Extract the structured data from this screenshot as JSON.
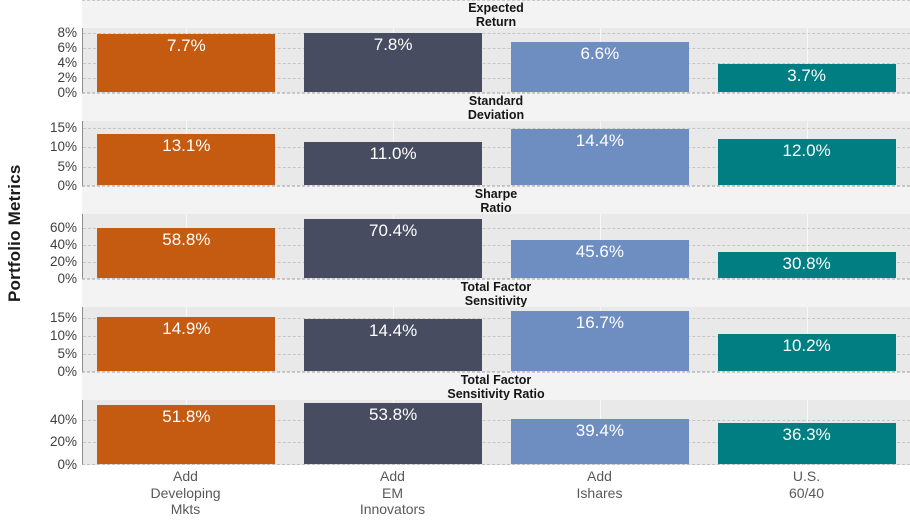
{
  "chart_data": {
    "type": "bar",
    "layout": "small-multiples-rows",
    "title": "",
    "ylabel": "Portfolio Metrics",
    "grid": true,
    "categories": [
      "Add\nDeveloping\nMkts",
      "Add\nEM\nInnovators",
      "Add\nIshares",
      "U.S.\n60/40"
    ],
    "series_colors": [
      "#C55A11",
      "#474C61",
      "#6E8DC0",
      "#007E82"
    ],
    "panels": [
      {
        "title": "Expected\nReturn",
        "ylim": [
          0,
          8.6
        ],
        "ticks": [
          0,
          2,
          4,
          6,
          8
        ],
        "tick_labels": [
          "0%",
          "2%",
          "4%",
          "6%",
          "8%"
        ],
        "values": [
          7.7,
          7.8,
          6.6,
          3.7
        ],
        "value_labels": [
          "7.7%",
          "7.8%",
          "6.6%",
          "3.7%"
        ]
      },
      {
        "title": "Standard\nDeviation",
        "ylim": [
          0,
          16.8
        ],
        "ticks": [
          0,
          5,
          10,
          15
        ],
        "tick_labels": [
          "0%",
          "5%",
          "10%",
          "15%"
        ],
        "values": [
          13.1,
          11.0,
          14.4,
          12.0
        ],
        "value_labels": [
          "13.1%",
          "11.0%",
          "14.4%",
          "12.0%"
        ]
      },
      {
        "title": "Sharpe\nRatio",
        "ylim": [
          0,
          77
        ],
        "ticks": [
          0,
          20,
          40,
          60
        ],
        "tick_labels": [
          "0%",
          "20%",
          "40%",
          "60%"
        ],
        "values": [
          58.8,
          70.4,
          45.6,
          30.8
        ],
        "value_labels": [
          "58.8%",
          "70.4%",
          "45.6%",
          "30.8%"
        ]
      },
      {
        "title": "Total Factor\nSensitivity",
        "ylim": [
          0,
          18
        ],
        "ticks": [
          0,
          5,
          10,
          15
        ],
        "tick_labels": [
          "0%",
          "5%",
          "10%",
          "15%"
        ],
        "values": [
          14.9,
          14.4,
          16.7,
          10.2
        ],
        "value_labels": [
          "14.9%",
          "14.4%",
          "16.7%",
          "10.2%"
        ]
      },
      {
        "title": "Total Factor\nSensitivity Ratio",
        "ylim": [
          0,
          57.5
        ],
        "ticks": [
          0,
          20,
          40
        ],
        "tick_labels": [
          "0%",
          "20%",
          "40%"
        ],
        "values": [
          51.8,
          53.8,
          39.4,
          36.3
        ],
        "value_labels": [
          "51.8%",
          "53.8%",
          "39.4%",
          "36.3%"
        ]
      }
    ]
  }
}
